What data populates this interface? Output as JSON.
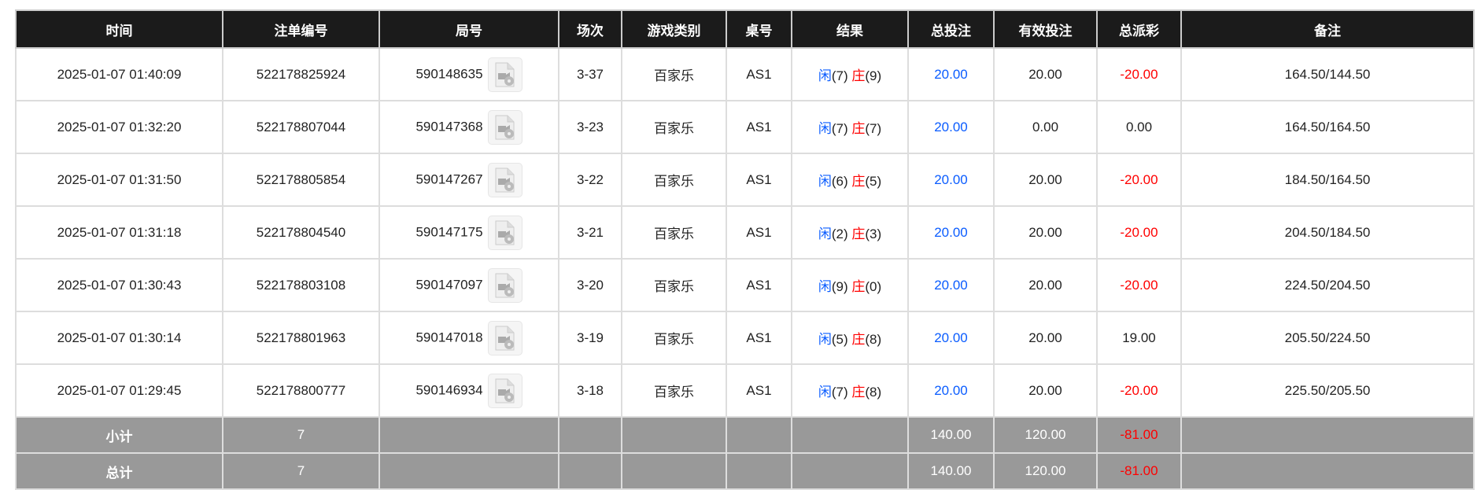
{
  "colors": {
    "header_bg": "#1b1b1b",
    "footer_bg": "#999999",
    "blue": "#0a5cff",
    "red": "#ff0000"
  },
  "columns": [
    "时间",
    "注单编号",
    "局号",
    "场次",
    "游戏类别",
    "桌号",
    "结果",
    "总投注",
    "有效投注",
    "总派彩",
    "备注"
  ],
  "result_labels": {
    "player": "闲",
    "banker": "庄"
  },
  "rows": [
    {
      "time": "2025-01-07 01:40:09",
      "bet_id": "522178825924",
      "round": "590148635",
      "shoe": "3-37",
      "game": "百家乐",
      "table": "AS1",
      "player": "(7)",
      "banker": "(9)",
      "total": "20.00",
      "valid": "20.00",
      "payout": "-20.00",
      "payout_neg": true,
      "note": "164.50/144.50"
    },
    {
      "time": "2025-01-07 01:32:20",
      "bet_id": "522178807044",
      "round": "590147368",
      "shoe": "3-23",
      "game": "百家乐",
      "table": "AS1",
      "player": "(7)",
      "banker": "(7)",
      "total": "20.00",
      "valid": "0.00",
      "payout": "0.00",
      "payout_neg": false,
      "note": "164.50/164.50"
    },
    {
      "time": "2025-01-07 01:31:50",
      "bet_id": "522178805854",
      "round": "590147267",
      "shoe": "3-22",
      "game": "百家乐",
      "table": "AS1",
      "player": "(6)",
      "banker": "(5)",
      "total": "20.00",
      "valid": "20.00",
      "payout": "-20.00",
      "payout_neg": true,
      "note": "184.50/164.50"
    },
    {
      "time": "2025-01-07 01:31:18",
      "bet_id": "522178804540",
      "round": "590147175",
      "shoe": "3-21",
      "game": "百家乐",
      "table": "AS1",
      "player": "(2)",
      "banker": "(3)",
      "total": "20.00",
      "valid": "20.00",
      "payout": "-20.00",
      "payout_neg": true,
      "note": "204.50/184.50"
    },
    {
      "time": "2025-01-07 01:30:43",
      "bet_id": "522178803108",
      "round": "590147097",
      "shoe": "3-20",
      "game": "百家乐",
      "table": "AS1",
      "player": "(9)",
      "banker": "(0)",
      "total": "20.00",
      "valid": "20.00",
      "payout": "-20.00",
      "payout_neg": true,
      "note": "224.50/204.50"
    },
    {
      "time": "2025-01-07 01:30:14",
      "bet_id": "522178801963",
      "round": "590147018",
      "shoe": "3-19",
      "game": "百家乐",
      "table": "AS1",
      "player": "(5)",
      "banker": "(8)",
      "total": "20.00",
      "valid": "20.00",
      "payout": "19.00",
      "payout_neg": false,
      "note": "205.50/224.50"
    },
    {
      "time": "2025-01-07 01:29:45",
      "bet_id": "522178800777",
      "round": "590146934",
      "shoe": "3-18",
      "game": "百家乐",
      "table": "AS1",
      "player": "(7)",
      "banker": "(8)",
      "total": "20.00",
      "valid": "20.00",
      "payout": "-20.00",
      "payout_neg": true,
      "note": "225.50/205.50"
    }
  ],
  "subtotal": {
    "label": "小计",
    "count": "7",
    "total": "140.00",
    "valid": "120.00",
    "payout": "-81.00"
  },
  "grandtotal": {
    "label": "总计",
    "count": "7",
    "total": "140.00",
    "valid": "120.00",
    "payout": "-81.00"
  }
}
